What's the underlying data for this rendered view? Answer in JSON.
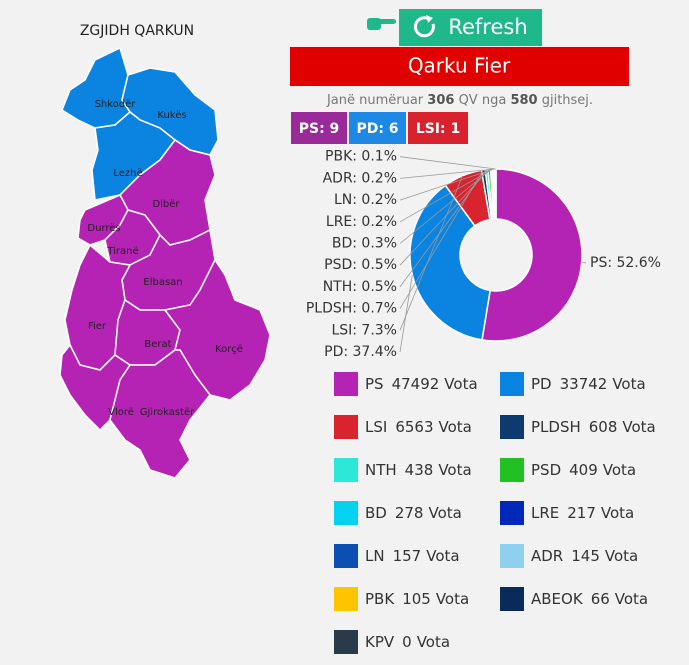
{
  "header": {
    "button": "Refresh"
  },
  "map": {
    "title": "ZGJIDH QARKUN",
    "regions": [
      {
        "name": "Shkodër",
        "color": "#0a84e0"
      },
      {
        "name": "Kukës",
        "color": "#0a84e0"
      },
      {
        "name": "Lezhë",
        "color": "#0a84e0"
      },
      {
        "name": "Dibër",
        "color": "#b523b5"
      },
      {
        "name": "Durrës",
        "color": "#b523b5"
      },
      {
        "name": "Tiranë",
        "color": "#b523b5"
      },
      {
        "name": "Elbasan",
        "color": "#b523b5"
      },
      {
        "name": "Fier",
        "color": "#b523b5"
      },
      {
        "name": "Berat",
        "color": "#b523b5"
      },
      {
        "name": "Korçë",
        "color": "#b523b5"
      },
      {
        "name": "Vlorë",
        "color": "#b523b5"
      },
      {
        "name": "Gjirokastër",
        "color": "#b523b5"
      }
    ]
  },
  "district": {
    "title": "Qarku Fier"
  },
  "summary": {
    "prefix": "Janë numëruar",
    "counted": 306,
    "middle": "QV nga",
    "total": 580,
    "suffix": "gjithsej."
  },
  "seats": [
    {
      "text": "PS: 9",
      "color": "#9a2a9a"
    },
    {
      "text": "PD: 6",
      "color": "#1e88e5"
    },
    {
      "text": "LSI: 1",
      "color": "#d8232f"
    }
  ],
  "chart_data": {
    "type": "pie",
    "donut": true,
    "categories": [
      "PS",
      "PD",
      "LSI",
      "PLDSH",
      "NTH",
      "PSD",
      "BD",
      "LRE",
      "LN",
      "ADR",
      "PBK"
    ],
    "values": [
      52.6,
      37.4,
      7.3,
      0.7,
      0.5,
      0.5,
      0.3,
      0.2,
      0.2,
      0.2,
      0.1
    ],
    "value_labels": [
      "PS: 52.6%",
      "PD: 37.4%",
      "LSI: 7.3%",
      "PLDSH: 0.7%",
      "NTH: 0.5%",
      "PSD: 0.5%",
      "BD: 0.3%",
      "LRE: 0.2%",
      "LN: 0.2%",
      "ADR: 0.2%",
      "PBK: 0.1%"
    ],
    "colors": [
      "#b523b5",
      "#0a84e0",
      "#d9232f",
      "#0d3b70",
      "#2de8d6",
      "#22c022",
      "#06d2f0",
      "#0029b8",
      "#0b4fb3",
      "#8fd0ee",
      "#ffc400"
    ]
  },
  "legend": {
    "unit": "Vota",
    "items": [
      {
        "name": "PS",
        "votes": 47492,
        "color": "#b523b5"
      },
      {
        "name": "PD",
        "votes": 33742,
        "color": "#0a84e0"
      },
      {
        "name": "LSI",
        "votes": 6563,
        "color": "#d9232f"
      },
      {
        "name": "PLDSH",
        "votes": 608,
        "color": "#0d3b70"
      },
      {
        "name": "NTH",
        "votes": 438,
        "color": "#2de8d6"
      },
      {
        "name": "PSD",
        "votes": 409,
        "color": "#22c022"
      },
      {
        "name": "BD",
        "votes": 278,
        "color": "#06d2f0"
      },
      {
        "name": "LRE",
        "votes": 217,
        "color": "#0029b8"
      },
      {
        "name": "LN",
        "votes": 157,
        "color": "#0b4fb3"
      },
      {
        "name": "ADR",
        "votes": 145,
        "color": "#8fd0ee"
      },
      {
        "name": "PBK",
        "votes": 105,
        "color": "#ffc400"
      },
      {
        "name": "ABEOK",
        "votes": 66,
        "color": "#0a2a5a"
      },
      {
        "name": "KPV",
        "votes": 0,
        "color": "#2b3a4a"
      }
    ]
  }
}
